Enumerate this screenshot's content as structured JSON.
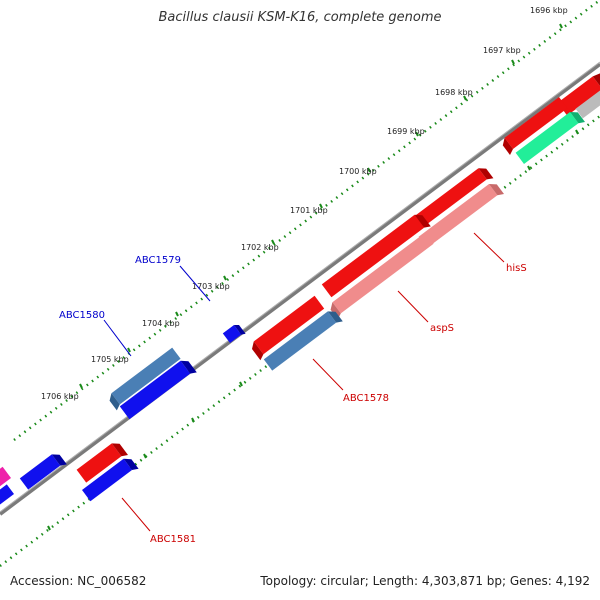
{
  "title": "Bacillus clausii KSM-K16, complete genome",
  "accession": "Accession: NC_006582",
  "summary": "Topology: circular; Length: 4,303,871 bp; Genes: 4,192",
  "colors": {
    "backbone": "#7a7a7a",
    "tick": "#1a8a1a",
    "red": "#ee1111",
    "pink": "#f08c8c",
    "blue": "#1010ee",
    "steel": "#4a7fb5",
    "green": "#22ee99",
    "grey": "#bbbbbb",
    "magenta": "#ee22aa",
    "label_red": "#cc0000",
    "label_blue": "#0000cc"
  },
  "ruler": {
    "unit": "kbp",
    "labels": [
      "1696 kbp",
      "1697 kbp",
      "1698 kbp",
      "1699 kbp",
      "1700 kbp",
      "1701 kbp",
      "1702 kbp",
      "1703 kbp",
      "1704 kbp",
      "1705 kbp",
      "1706 kbp"
    ]
  },
  "genes": [
    {
      "name": "hisS",
      "color": "label_red"
    },
    {
      "name": "aspS",
      "color": "label_red"
    },
    {
      "name": "ABC1578",
      "color": "label_red"
    },
    {
      "name": "ABC1579",
      "color": "label_blue"
    },
    {
      "name": "ABC1580",
      "color": "label_blue"
    },
    {
      "name": "ABC1581",
      "color": "label_red"
    }
  ]
}
